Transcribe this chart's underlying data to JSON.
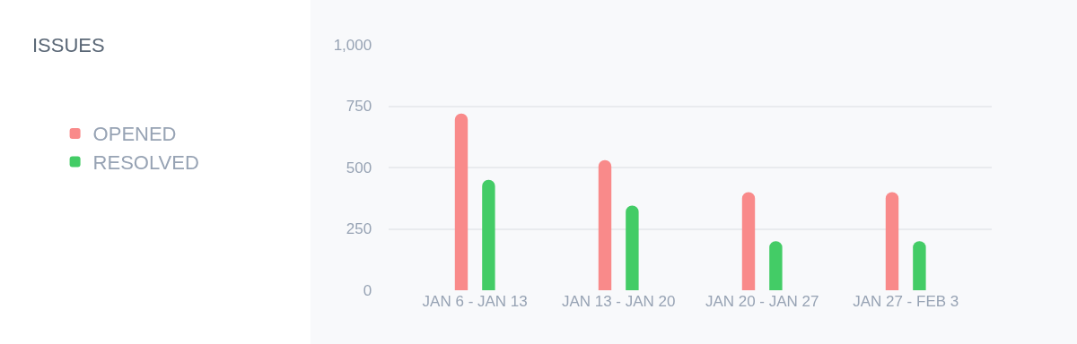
{
  "chart_data": {
    "type": "bar",
    "title": "ISSUES",
    "categories": [
      "JAN 6 - JAN 13",
      "JAN 13 - JAN 20",
      "JAN 20 - JAN 27",
      "JAN 27 - FEB 3"
    ],
    "series": [
      {
        "name": "OPENED",
        "color": "#f98a8a",
        "values": [
          720,
          530,
          400,
          400
        ]
      },
      {
        "name": "RESOLVED",
        "color": "#43cc66",
        "values": [
          450,
          345,
          200,
          200
        ]
      }
    ],
    "ylim": [
      0,
      1000
    ],
    "yticks": [
      0,
      250,
      500,
      750,
      {
        "value": 1000,
        "label": "1,000"
      }
    ],
    "grid": "y",
    "legend": "left"
  }
}
